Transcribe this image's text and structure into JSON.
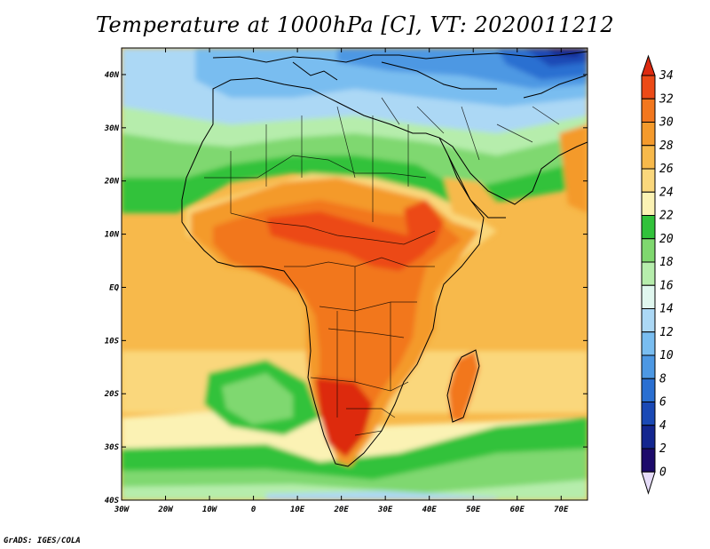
{
  "title": "Temperature at 1000hPa [C], VT: 2020011212",
  "credit": "GrADS: IGES/COLA",
  "map": {
    "lon_range": [
      -30,
      76
    ],
    "lat_range": [
      -40,
      45
    ],
    "lon_ticks": [
      "30W",
      "20W",
      "10W",
      "0",
      "10E",
      "20E",
      "30E",
      "40E",
      "50E",
      "60E",
      "70E"
    ],
    "lat_ticks": [
      "40N",
      "30N",
      "20N",
      "10N",
      "EQ",
      "10S",
      "20S",
      "30S",
      "40S"
    ]
  },
  "colorbar": {
    "labels": [
      "34",
      "32",
      "30",
      "28",
      "26",
      "24",
      "22",
      "20",
      "18",
      "16",
      "14",
      "12",
      "10",
      "8",
      "6",
      "4",
      "2",
      "0"
    ],
    "colors": {
      "top": "#dd2a10",
      "c32": "#ec4a17",
      "c30": "#f2771e",
      "c28": "#f49a2c",
      "c26": "#f7b94b",
      "c24": "#fad77c",
      "c22": "#fbf2b4",
      "c20": "#31c23b",
      "c18": "#7fd86f",
      "c16": "#b6edac",
      "c14": "#e0f7ef",
      "c12": "#acd8f5",
      "c10": "#79bdf0",
      "c8": "#4d98e3",
      "c6": "#2a6fd1",
      "c4": "#1a49b5",
      "c2": "#13268f",
      "c0": "#1d0b6b",
      "bottom": "#e6dcf9"
    }
  }
}
